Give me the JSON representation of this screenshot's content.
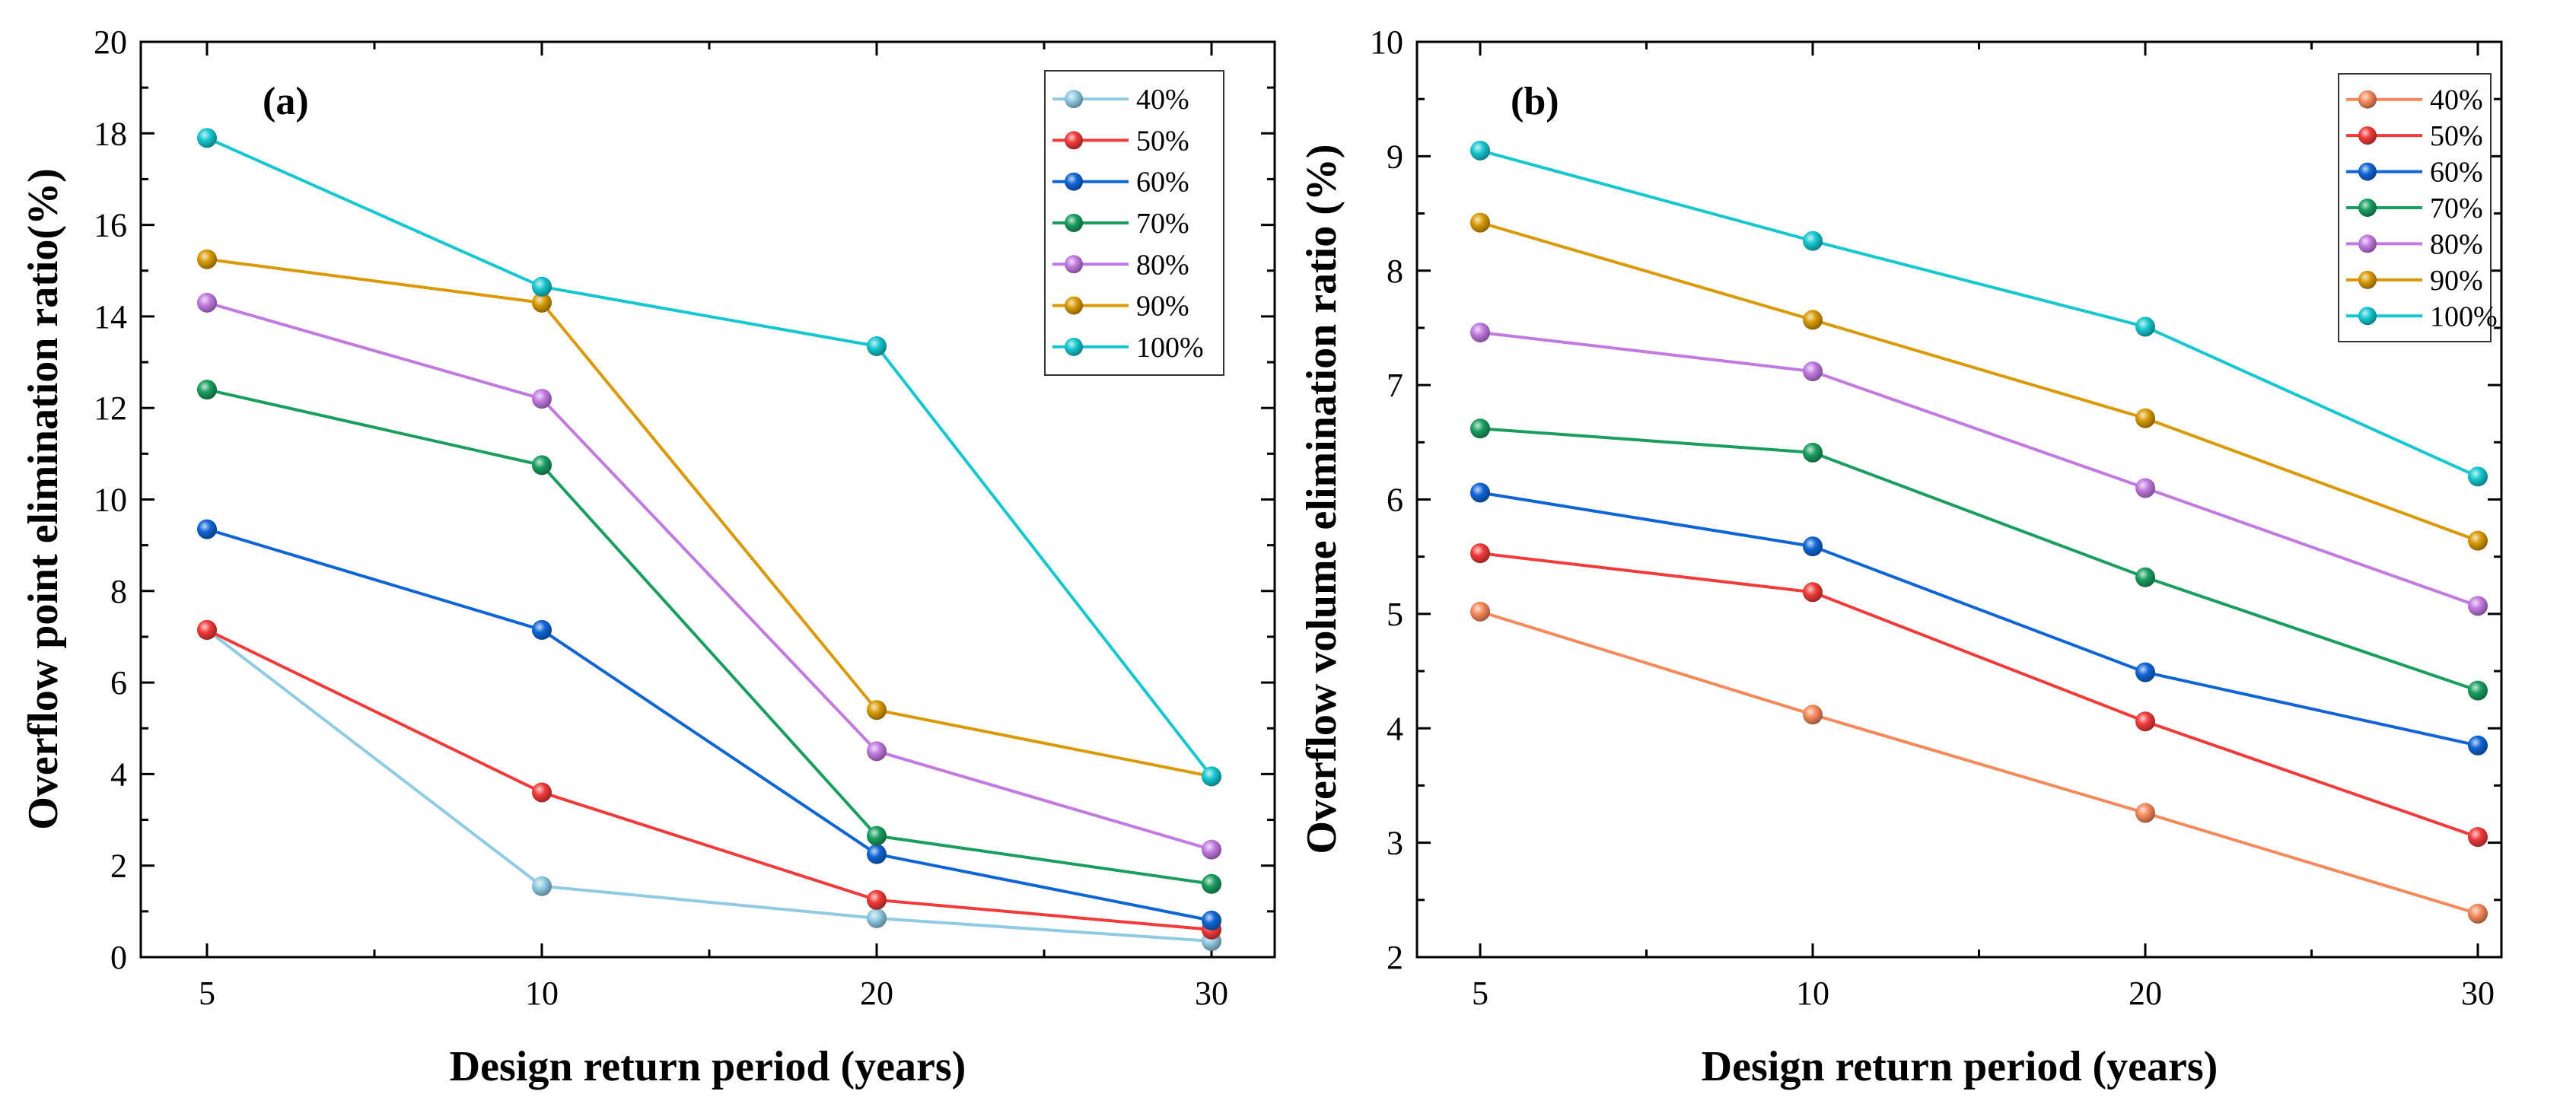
{
  "chart_data": [
    {
      "type": "line",
      "panel_label": "(a)",
      "xlabel": "Design return period (years)",
      "ylabel": "Overflow point elimination ratio(%)",
      "categories": [
        "5",
        "10",
        "20",
        "30"
      ],
      "ylim": [
        0,
        20
      ],
      "yticks": [
        "0",
        "2",
        "4",
        "6",
        "8",
        "10",
        "12",
        "14",
        "16",
        "18",
        "20"
      ],
      "legend_position": "top-right",
      "series": [
        {
          "name": "40%",
          "color": "#8fcbe3",
          "values": [
            7.15,
            1.55,
            0.85,
            0.35
          ]
        },
        {
          "name": "50%",
          "color": "#f23a3a",
          "values": [
            7.15,
            3.6,
            1.25,
            0.6
          ]
        },
        {
          "name": "60%",
          "color": "#1065d6",
          "values": [
            9.35,
            7.15,
            2.25,
            0.8
          ]
        },
        {
          "name": "70%",
          "color": "#1a9e60",
          "values": [
            12.4,
            10.75,
            2.65,
            1.6
          ]
        },
        {
          "name": "80%",
          "color": "#c27ae0",
          "values": [
            14.3,
            12.2,
            4.5,
            2.35
          ]
        },
        {
          "name": "90%",
          "color": "#d99a06",
          "values": [
            15.25,
            14.3,
            5.4,
            3.95
          ]
        },
        {
          "name": "100%",
          "color": "#16c7cf",
          "values": [
            17.9,
            14.65,
            13.35,
            3.95
          ]
        }
      ]
    },
    {
      "type": "line",
      "panel_label": "(b)",
      "xlabel": "Design return period (years)",
      "ylabel": "Overflow volume elimination ratio (%)",
      "categories": [
        "5",
        "10",
        "20",
        "30"
      ],
      "ylim": [
        2,
        10
      ],
      "yticks": [
        "2",
        "3",
        "4",
        "5",
        "6",
        "7",
        "8",
        "9",
        "10"
      ],
      "legend_position": "top-right",
      "series": [
        {
          "name": "40%",
          "color": "#f6895c",
          "values": [
            5.02,
            4.12,
            3.26,
            2.38
          ]
        },
        {
          "name": "50%",
          "color": "#f23a3a",
          "values": [
            5.53,
            5.19,
            4.06,
            3.05
          ]
        },
        {
          "name": "60%",
          "color": "#1065d6",
          "values": [
            6.06,
            5.59,
            4.49,
            3.85
          ]
        },
        {
          "name": "70%",
          "color": "#1a9e60",
          "values": [
            6.62,
            6.41,
            5.32,
            4.33
          ]
        },
        {
          "name": "80%",
          "color": "#c27ae0",
          "values": [
            7.46,
            7.12,
            6.1,
            5.07
          ]
        },
        {
          "name": "90%",
          "color": "#d99a06",
          "values": [
            8.42,
            7.57,
            6.71,
            5.64
          ]
        },
        {
          "name": "100%",
          "color": "#16c7cf",
          "values": [
            9.05,
            8.26,
            7.51,
            6.2
          ]
        }
      ]
    }
  ]
}
